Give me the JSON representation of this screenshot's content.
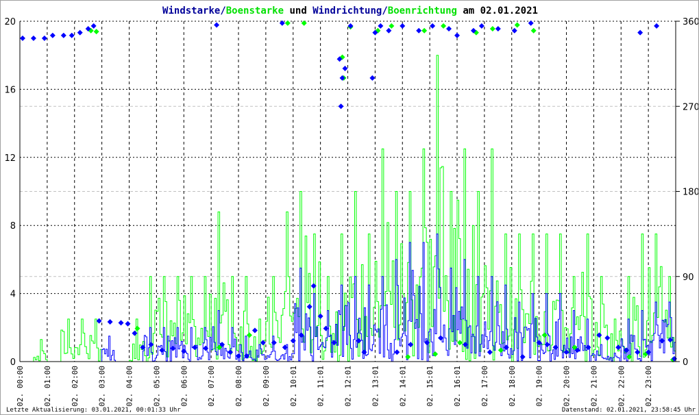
{
  "colors": {
    "wind": "#0000ff",
    "gust": "#00ff00",
    "title_navy": "#000099",
    "title_green": "#00e000"
  },
  "chart_data": {
    "type": "line",
    "title_parts": [
      {
        "text": "Windstarke/",
        "color": "#000099"
      },
      {
        "text": "Boenstarke",
        "color": "#00e000"
      },
      {
        "text": " und ",
        "color": "#000000"
      },
      {
        "text": "Windrichtung/",
        "color": "#000099"
      },
      {
        "text": "Boenrichtung",
        "color": "#00e000"
      },
      {
        "text": " am 02.01.2021",
        "color": "#000000"
      }
    ],
    "y_left": {
      "ylim": [
        0,
        20
      ],
      "ticks": [
        "0",
        "4",
        "8",
        "12",
        "16",
        "20"
      ]
    },
    "y_right": {
      "ylim": [
        0,
        360
      ],
      "ticks": [
        "0",
        "90",
        "180",
        "270",
        "360"
      ]
    },
    "x_ticks": [
      "02. 00:00",
      "02. 01:00",
      "02. 02:00",
      "02. 03:00",
      "02. 04:00",
      "02. 05:00",
      "02. 06:00",
      "02. 07:00",
      "02. 08:00",
      "02. 09:00",
      "02. 10:01",
      "02. 11:01",
      "02. 12:01",
      "02. 13:01",
      "02. 14:01",
      "02. 15:01",
      "02. 16:01",
      "02. 17:00",
      "02. 18:00",
      "02. 19:00",
      "02. 20:00",
      "02. 21:00",
      "02. 22:00",
      "02. 23:00"
    ],
    "grid": true,
    "x_hours": [
      0,
      0.5,
      1,
      1.5,
      2,
      2.5,
      3,
      3.5,
      4,
      4.5,
      5,
      5.5,
      6,
      6.5,
      7,
      7.5,
      8,
      8.5,
      9,
      9.5,
      10,
      10.5,
      11,
      11.5,
      12,
      12.5,
      13,
      13.5,
      14,
      14.5,
      15,
      15.5,
      16,
      16.5,
      17,
      17.5,
      18,
      18.5,
      19,
      19.5,
      20,
      20.5,
      21,
      21.5,
      22,
      22.5,
      23,
      23.5
    ],
    "series": [
      {
        "name": "Windstarke",
        "axis": "left",
        "values": [
          0,
          0,
          0,
          0,
          0,
          0,
          1.5,
          0,
          0,
          2,
          2,
          2,
          2,
          2,
          3,
          2,
          1.5,
          1,
          1.5,
          1,
          5.5,
          4,
          3,
          4.5,
          5,
          4.5,
          5,
          6,
          7,
          7,
          7.5,
          5.5,
          6,
          5,
          5,
          4.5,
          3.5,
          4,
          4,
          4,
          3,
          2.5,
          1,
          0.5,
          2.5,
          3,
          3.5,
          3.5
        ]
      },
      {
        "name": "Boenstarke",
        "axis": "left",
        "values": [
          0,
          1.3,
          0,
          2.5,
          2.5,
          2.5,
          0,
          0,
          2.5,
          5,
          5,
          5,
          5,
          5,
          8.8,
          5,
          5,
          2.5,
          5,
          8.8,
          10,
          7.5,
          5,
          7.5,
          10,
          7.5,
          12.5,
          10,
          10,
          12.5,
          18,
          10,
          12.5,
          10,
          12.5,
          7.5,
          7.5,
          7.5,
          7.5,
          7.5,
          5,
          7.5,
          5,
          2.5,
          5,
          7.5,
          7.5,
          5
        ]
      },
      {
        "name": "Windrichtung",
        "axis": "right",
        "points": [
          [
            0.1,
            342
          ],
          [
            0.5,
            342
          ],
          [
            0.9,
            342
          ],
          [
            1.2,
            345
          ],
          [
            1.6,
            345
          ],
          [
            1.9,
            345
          ],
          [
            2.2,
            348
          ],
          [
            2.5,
            352
          ],
          [
            2.7,
            355
          ],
          [
            2.9,
            43
          ],
          [
            3.3,
            42
          ],
          [
            3.7,
            41
          ],
          [
            3.95,
            40
          ],
          [
            4.2,
            30
          ],
          [
            4.5,
            15
          ],
          [
            4.8,
            18
          ],
          [
            5.2,
            12
          ],
          [
            5.6,
            14
          ],
          [
            6.0,
            11
          ],
          [
            6.4,
            15
          ],
          [
            6.8,
            14
          ],
          [
            7.2,
            356
          ],
          [
            7.4,
            18
          ],
          [
            7.7,
            10
          ],
          [
            8.0,
            6
          ],
          [
            8.3,
            6
          ],
          [
            8.6,
            33
          ],
          [
            8.9,
            20
          ],
          [
            9.3,
            20
          ],
          [
            9.6,
            358
          ],
          [
            9.7,
            15
          ],
          [
            10.0,
            22
          ],
          [
            10.3,
            28
          ],
          [
            10.6,
            58
          ],
          [
            10.75,
            80
          ],
          [
            11.0,
            48
          ],
          [
            11.2,
            35
          ],
          [
            11.5,
            20
          ],
          [
            11.7,
            320
          ],
          [
            11.75,
            270
          ],
          [
            11.8,
            300
          ],
          [
            11.9,
            310
          ],
          [
            12.1,
            355
          ],
          [
            12.4,
            22
          ],
          [
            12.6,
            10
          ],
          [
            12.9,
            300
          ],
          [
            13.0,
            348
          ],
          [
            13.2,
            355
          ],
          [
            13.5,
            350
          ],
          [
            13.8,
            10
          ],
          [
            14.0,
            355
          ],
          [
            14.3,
            18
          ],
          [
            14.6,
            350
          ],
          [
            14.9,
            20
          ],
          [
            15.1,
            355
          ],
          [
            15.4,
            25
          ],
          [
            15.7,
            352
          ],
          [
            16.0,
            345
          ],
          [
            16.3,
            18
          ],
          [
            16.6,
            350
          ],
          [
            16.9,
            355
          ],
          [
            17.2,
            10
          ],
          [
            17.5,
            352
          ],
          [
            17.8,
            15
          ],
          [
            18.1,
            350
          ],
          [
            18.4,
            5
          ],
          [
            18.7,
            358
          ],
          [
            19.0,
            20
          ],
          [
            19.3,
            18
          ],
          [
            19.6,
            15
          ],
          [
            20.0,
            10
          ],
          [
            20.4,
            12
          ],
          [
            20.8,
            15
          ],
          [
            21.2,
            28
          ],
          [
            21.5,
            25
          ],
          [
            21.9,
            15
          ],
          [
            22.2,
            12
          ],
          [
            22.6,
            10
          ],
          [
            22.7,
            348
          ],
          [
            23.0,
            10
          ],
          [
            23.3,
            355
          ],
          [
            23.5,
            22
          ],
          [
            23.8,
            23
          ],
          [
            23.95,
            3
          ]
        ]
      },
      {
        "name": "Boenrichtung",
        "axis": "right",
        "points": [
          [
            2.6,
            350
          ],
          [
            2.8,
            349
          ],
          [
            4.3,
            35
          ],
          [
            7.3,
            15
          ],
          [
            8.4,
            28
          ],
          [
            9.8,
            358
          ],
          [
            10.4,
            358
          ],
          [
            11.8,
            322
          ],
          [
            11.85,
            300
          ],
          [
            12.1,
            354
          ],
          [
            13.1,
            350
          ],
          [
            13.6,
            355
          ],
          [
            14.2,
            5
          ],
          [
            14.8,
            350
          ],
          [
            15.2,
            8
          ],
          [
            15.5,
            355
          ],
          [
            16.1,
            20
          ],
          [
            16.7,
            348
          ],
          [
            17.3,
            352
          ],
          [
            17.6,
            12
          ],
          [
            18.2,
            356
          ],
          [
            18.8,
            350
          ],
          [
            19.2,
            28
          ],
          [
            20.3,
            15
          ],
          [
            22.3,
            5
          ],
          [
            22.9,
            8
          ],
          [
            23.9,
            2
          ]
        ]
      }
    ]
  },
  "footer": {
    "last_update": "Letzte Aktualisierung: 03.01.2021, 00:01:33 Uhr",
    "data_state": "Datenstand: 02.01.2021, 23:58:45 Uhr"
  }
}
